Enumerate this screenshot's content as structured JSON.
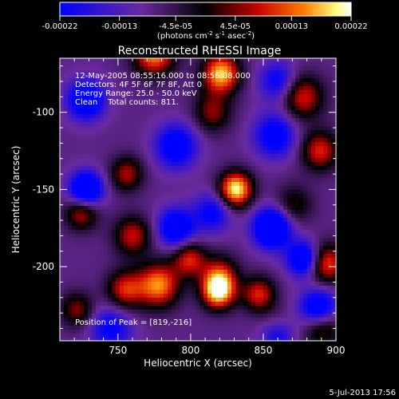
{
  "colorbar": {
    "tick_labels": [
      "-0.00022",
      "-0.00013",
      "-4.5e-05",
      "4.5e-05",
      "0.00013",
      "0.00022"
    ],
    "unit_label_main": "(photons cm",
    "unit_sup1": "-2",
    "unit_mid": " s",
    "unit_sup2": "-1",
    "unit_mid2": " asec",
    "unit_sup3": "-2",
    "unit_close": ")"
  },
  "chart_data": {
    "type": "heatmap",
    "title": "Reconstructed RHESSI Image",
    "xlabel": "Heliocentric X (arcsec)",
    "ylabel": "Heliocentric Y (arcsec)",
    "xlim": [
      710,
      900
    ],
    "ylim": [
      -248,
      -65
    ],
    "x_ticks": [
      750,
      800,
      850,
      900
    ],
    "x_tick_labels": [
      "750",
      "800",
      "850",
      "900"
    ],
    "y_ticks": [
      -100,
      -150,
      -200
    ],
    "y_tick_labels": [
      "-100",
      "-150",
      "-200"
    ],
    "colorbar_range": [
      -0.00022,
      0.00022
    ],
    "colormap": [
      "#0000ff",
      "#6a2a9e",
      "#000000",
      "#c80000",
      "#ff8000",
      "#ffff80",
      "#ffffff"
    ],
    "blobs": [
      {
        "x": 775,
        "y": -62,
        "v": 0.8,
        "s": 10
      },
      {
        "x": 821,
        "y": -75,
        "v": 0.9,
        "s": 9
      },
      {
        "x": 815,
        "y": -100,
        "v": 0.45,
        "s": 9
      },
      {
        "x": 877,
        "y": -90,
        "v": 0.6,
        "s": 10
      },
      {
        "x": 889,
        "y": -125,
        "v": 0.6,
        "s": 9
      },
      {
        "x": 756,
        "y": -140,
        "v": 0.5,
        "s": 8
      },
      {
        "x": 831,
        "y": -150,
        "v": 1.0,
        "s": 8
      },
      {
        "x": 871,
        "y": -160,
        "v": 0.35,
        "s": 9
      },
      {
        "x": 725,
        "y": -165,
        "v": 0.55,
        "s": 8
      },
      {
        "x": 760,
        "y": -180,
        "v": 0.55,
        "s": 9
      },
      {
        "x": 799,
        "y": -195,
        "v": 0.6,
        "s": 8
      },
      {
        "x": 820,
        "y": -205,
        "v": 0.5,
        "s": 9
      },
      {
        "x": 755,
        "y": -215,
        "v": 0.6,
        "s": 9
      },
      {
        "x": 778,
        "y": -212,
        "v": 0.8,
        "s": 10
      },
      {
        "x": 819,
        "y": -216,
        "v": 0.95,
        "s": 8
      },
      {
        "x": 847,
        "y": -218,
        "v": 0.6,
        "s": 8
      },
      {
        "x": 893,
        "y": -198,
        "v": 0.7,
        "s": 9
      },
      {
        "x": 890,
        "y": -238,
        "v": 0.6,
        "s": 9
      },
      {
        "x": 860,
        "y": -240,
        "v": 0.5,
        "s": 8
      },
      {
        "x": 722,
        "y": -228,
        "v": 0.45,
        "s": 8
      },
      {
        "x": 728,
        "y": -92,
        "v": -0.75,
        "s": 9
      },
      {
        "x": 790,
        "y": -122,
        "v": -0.65,
        "s": 10
      },
      {
        "x": 728,
        "y": -150,
        "v": -0.9,
        "s": 8
      },
      {
        "x": 790,
        "y": -175,
        "v": -0.7,
        "s": 9
      },
      {
        "x": 856,
        "y": -175,
        "v": -0.95,
        "s": 9
      },
      {
        "x": 878,
        "y": -195,
        "v": -0.8,
        "s": 8
      },
      {
        "x": 888,
        "y": -228,
        "v": -0.85,
        "s": 9
      },
      {
        "x": 858,
        "y": -115,
        "v": -0.6,
        "s": 10
      },
      {
        "x": 815,
        "y": -165,
        "v": -0.5,
        "s": 9
      },
      {
        "x": 860,
        "y": -243,
        "v": -0.8,
        "s": 8
      },
      {
        "x": 745,
        "y": -240,
        "v": -0.5,
        "s": 10
      },
      {
        "x": 860,
        "y": -80,
        "v": -0.5,
        "s": 9
      }
    ]
  },
  "annotations": {
    "time_range": "12-May-2005 08:55:16.000 to 08:56:08.000",
    "detectors": "Detectors: 4F 5F 6F 7F 8F, Att 0",
    "energy": "Energy Range: 25.0 - 50.0 keV",
    "clean": "Clean    Total counts: 811.",
    "peak": "Position of Peak = [819,-216]"
  },
  "footer": {
    "date": "5-Jul-2013 17:56"
  }
}
